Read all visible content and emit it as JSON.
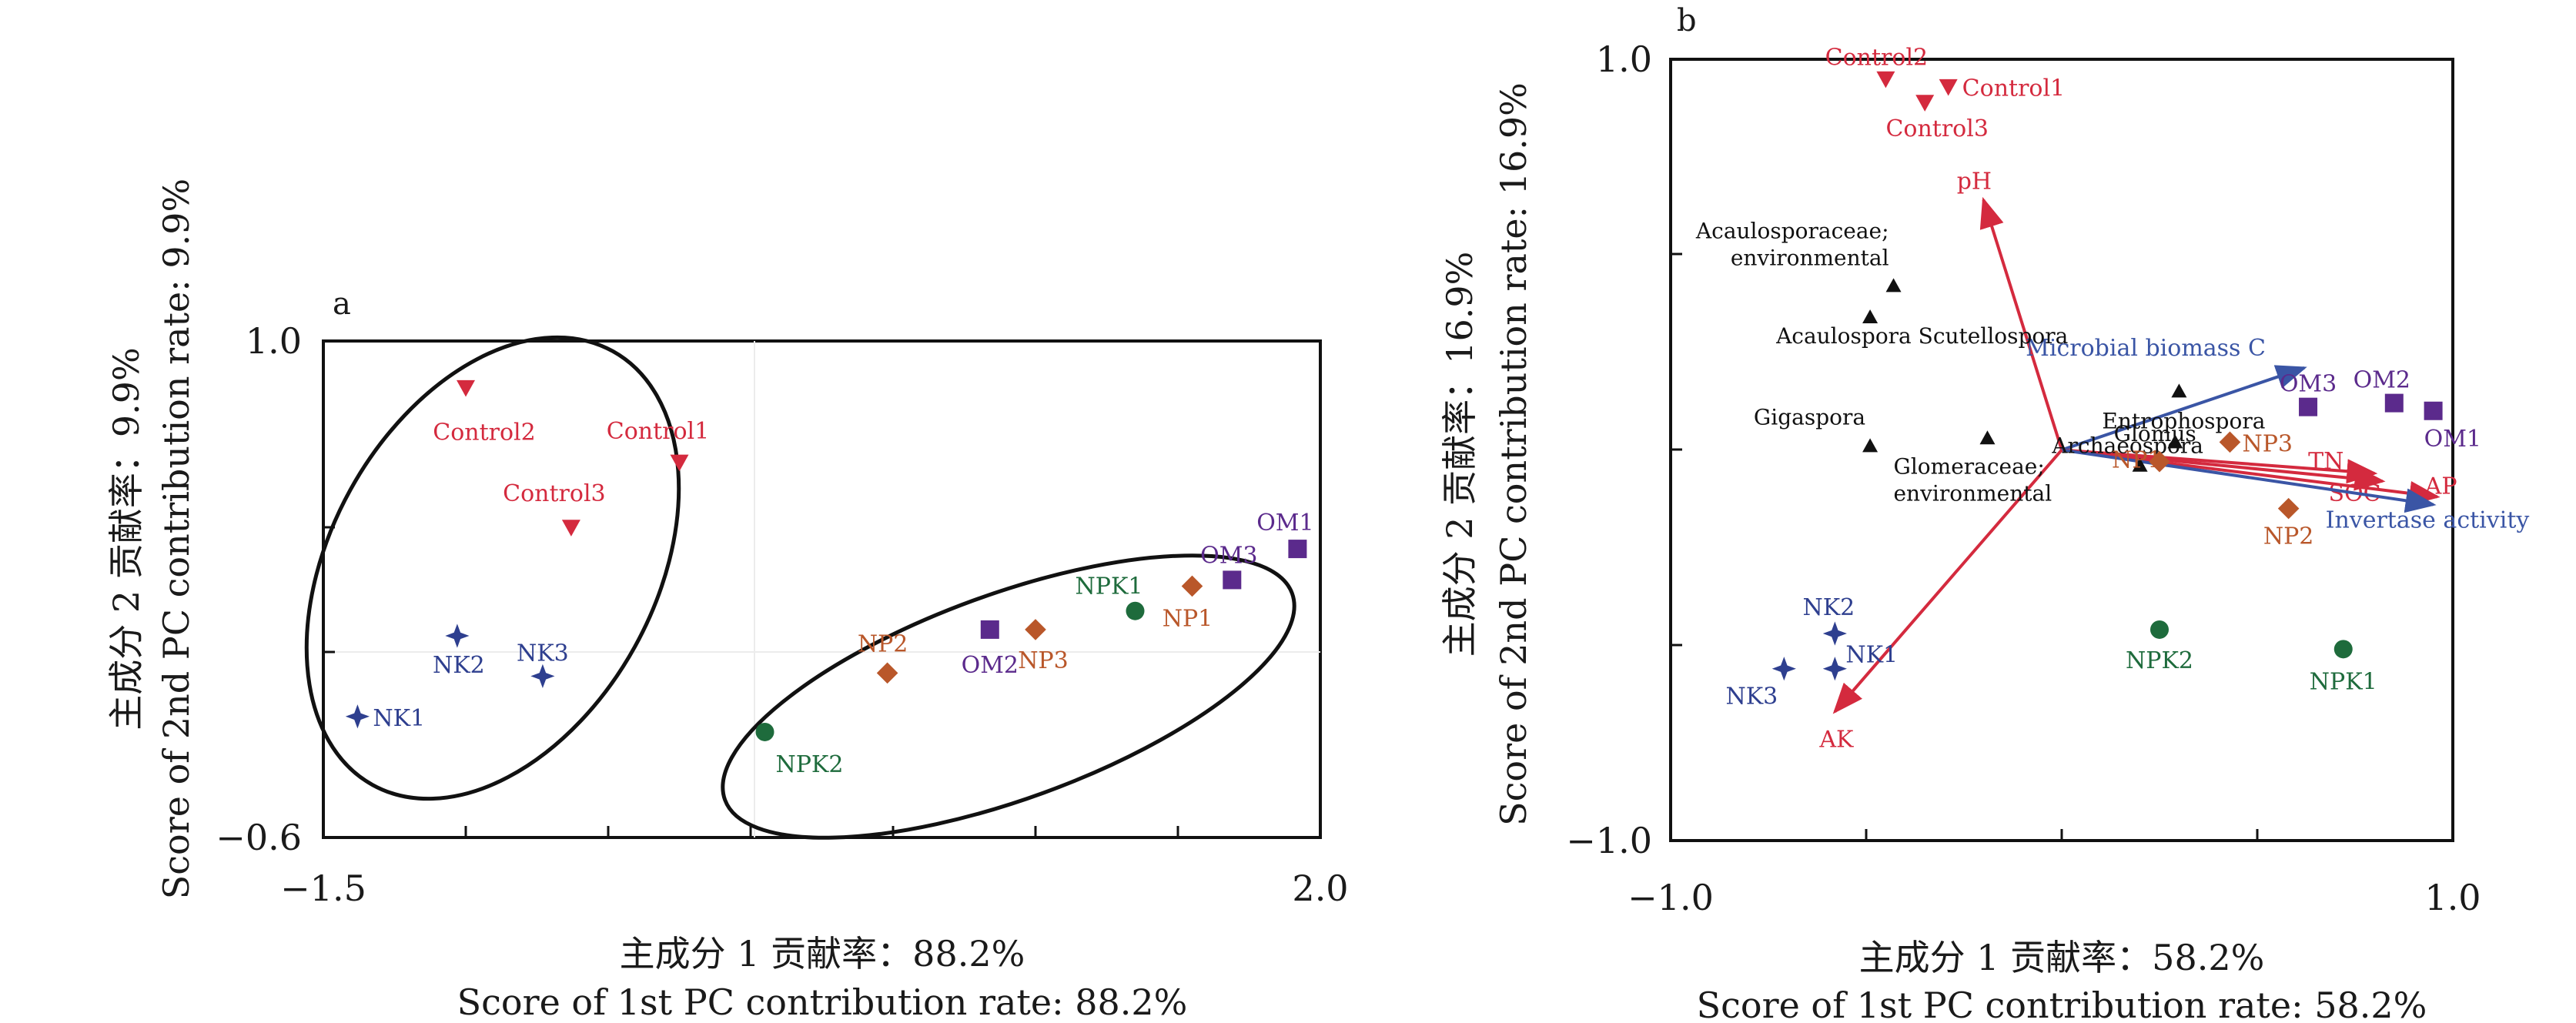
{
  "chart_data": [
    {
      "panel": "a",
      "type": "scatter",
      "xlim": [
        -1.5,
        2.0
      ],
      "ylim": [
        -0.6,
        1.0
      ],
      "x_tick_labels": {
        "min": "−1.5",
        "max": "2.0"
      },
      "y_tick_labels": {
        "max": "1.0",
        "min": "−0.6"
      },
      "xlabel_cn": "主成分 1 贡献率：88.2%",
      "xlabel_en": "Score of 1st PC contribution rate: 88.2%",
      "ylabel_cn": "主成分 2 贡献率：9.9%",
      "ylabel_en": "Score of 2nd PC contribution rate: 9.9%",
      "points": [
        {
          "label": "Control2",
          "group": "Control",
          "x": -1.0,
          "y": 0.85
        },
        {
          "label": "Control1",
          "group": "Control",
          "x": -0.25,
          "y": 0.61
        },
        {
          "label": "Control3",
          "group": "Control",
          "x": -0.63,
          "y": 0.4
        },
        {
          "label": "NK2",
          "group": "NK",
          "x": -1.03,
          "y": 0.05
        },
        {
          "label": "NK3",
          "group": "NK",
          "x": -0.73,
          "y": -0.08
        },
        {
          "label": "NK1",
          "group": "NK",
          "x": -1.38,
          "y": -0.21
        },
        {
          "label": "NPK1",
          "group": "NPK",
          "x": 1.35,
          "y": 0.13
        },
        {
          "label": "NPK2",
          "group": "NPK",
          "x": 0.05,
          "y": -0.26
        },
        {
          "label": "NP1",
          "group": "NP",
          "x": 1.55,
          "y": 0.21
        },
        {
          "label": "NP3",
          "group": "NP",
          "x": 1.0,
          "y": 0.07
        },
        {
          "label": "NP2",
          "group": "NP",
          "x": 0.48,
          "y": -0.07
        },
        {
          "label": "OM1",
          "group": "OM",
          "x": 1.92,
          "y": 0.33
        },
        {
          "label": "OM3",
          "group": "OM",
          "x": 1.69,
          "y": 0.23
        },
        {
          "label": "OM2",
          "group": "OM",
          "x": 0.84,
          "y": 0.07
        }
      ]
    },
    {
      "panel": "b",
      "type": "scatter",
      "xlim": [
        -1.0,
        1.0
      ],
      "ylim": [
        -1.0,
        1.0
      ],
      "x_tick_labels": {
        "min": "−1.0",
        "max": "1.0"
      },
      "y_tick_labels": {
        "max": "1.0",
        "min": "−1.0"
      },
      "xlabel_cn": "主成分 1 贡献率：58.2%",
      "xlabel_en": "Score of 1st PC contribution rate: 58.2%",
      "ylabel_cn": "主成分 2 贡献率：16.9%",
      "ylabel_en": "Score of 2nd PC contribution rate: 16.9%",
      "points": [
        {
          "label": "Control2",
          "group": "Control",
          "x": -0.45,
          "y": 0.95
        },
        {
          "label": "Control1",
          "group": "Control",
          "x": -0.29,
          "y": 0.93
        },
        {
          "label": "Control3",
          "group": "Control",
          "x": -0.35,
          "y": 0.89
        },
        {
          "label": "OM3",
          "group": "OM",
          "x": 0.63,
          "y": 0.11
        },
        {
          "label": "OM2",
          "group": "OM",
          "x": 0.85,
          "y": 0.12
        },
        {
          "label": "OM1",
          "group": "OM",
          "x": 0.95,
          "y": 0.1
        },
        {
          "label": "NP1",
          "group": "NP",
          "x": 0.25,
          "y": -0.03
        },
        {
          "label": "NP3",
          "group": "NP",
          "x": 0.43,
          "y": 0.02
        },
        {
          "label": "NP2",
          "group": "NP",
          "x": 0.58,
          "y": -0.15
        },
        {
          "label": "NPK2",
          "group": "NPK",
          "x": 0.25,
          "y": -0.46
        },
        {
          "label": "NPK1",
          "group": "NPK",
          "x": 0.72,
          "y": -0.51
        },
        {
          "label": "NK2",
          "group": "NK",
          "x": -0.58,
          "y": -0.47
        },
        {
          "label": "NK1",
          "group": "NK",
          "x": -0.58,
          "y": -0.56
        },
        {
          "label": "NK3",
          "group": "NK",
          "x": -0.71,
          "y": -0.56
        }
      ],
      "species": [
        {
          "label": "Acaulosporaceae; environmental",
          "x": -0.43,
          "y": 0.42
        },
        {
          "label": "Acaulospora Scutellospora",
          "x": -0.49,
          "y": 0.34
        },
        {
          "label": "Glomus",
          "x": 0.2,
          "y": -0.04
        },
        {
          "label": "Gigaspora",
          "x": -0.49,
          "y": 0.01
        },
        {
          "label": "Glomeraceae; environmental",
          "x": -0.19,
          "y": 0.03
        },
        {
          "label": "Archaeospora",
          "x": 0.29,
          "y": 0.02
        },
        {
          "label": "Entrophospora",
          "x": 0.3,
          "y": 0.15
        }
      ],
      "vectors": [
        {
          "label": "pH",
          "color": "#d42a3e",
          "x": -0.2,
          "y": 0.64
        },
        {
          "label": "Microbial biomass C",
          "color": "#3a55a5",
          "x": 0.62,
          "y": 0.21
        },
        {
          "label": "TN",
          "color": "#d42a3e",
          "x": 0.8,
          "y": -0.06
        },
        {
          "label": "SOC",
          "color": "#d42a3e",
          "x": 0.82,
          "y": -0.08
        },
        {
          "label": "AP",
          "color": "#d42a3e",
          "x": 0.96,
          "y": -0.12
        },
        {
          "label": "Invertase activity",
          "color": "#3a55a5",
          "x": 0.95,
          "y": -0.14
        },
        {
          "label": "AK",
          "color": "#d42a3e",
          "x": -0.58,
          "y": -0.67
        }
      ]
    }
  ],
  "panels": {
    "a": {
      "letter": "a"
    },
    "b": {
      "letter": "b"
    }
  },
  "colors": {
    "Control": "#d42a3e",
    "NK": "#2e3f8f",
    "NPK": "#1e6b3c",
    "NP": "#b9572a",
    "OM": "#5b2a8c",
    "species": "#111111",
    "text": "#1a1a1a"
  },
  "marker_shapes": {
    "Control": "triangle-down",
    "NK": "star4",
    "NPK": "circle",
    "NP": "diamond",
    "OM": "square",
    "species": "triangle-up"
  }
}
